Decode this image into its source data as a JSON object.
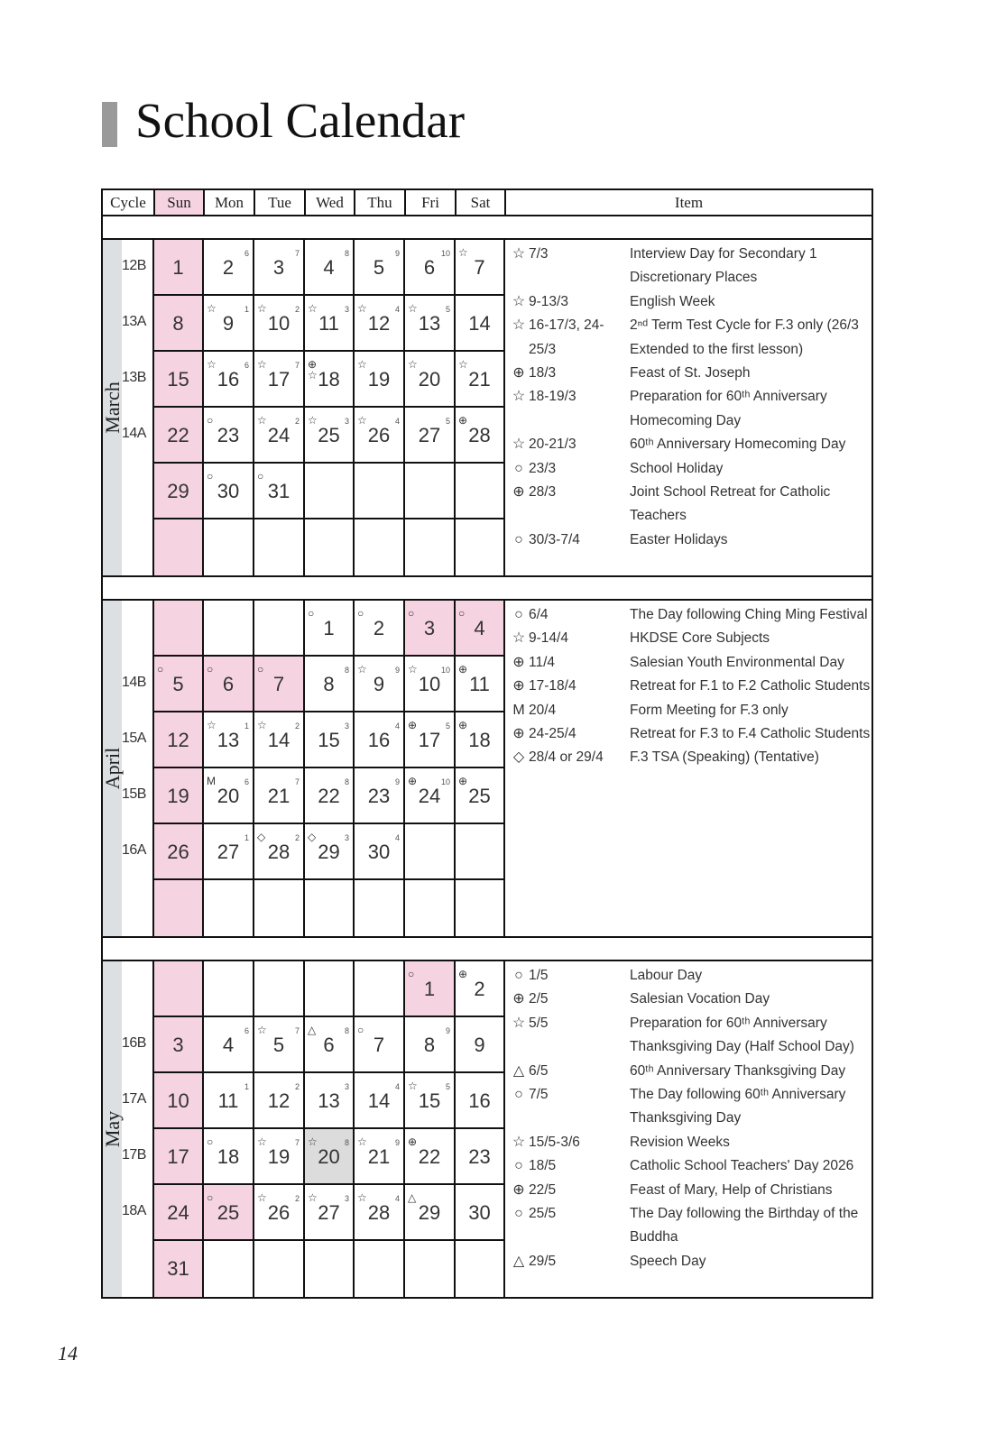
{
  "title": "School Calendar",
  "page_number": "14",
  "colors": {
    "holiday_pink": "#f6d3e1",
    "month_strip": "#dde0e3",
    "highlight_gray": "#dcdcdc"
  },
  "icons": {
    "star": "☆",
    "circle": "○",
    "cross": "⊕",
    "triangle": "△",
    "diamond": "◇",
    "M": "M"
  },
  "header": [
    "Cycle",
    "Sun",
    "Mon",
    "Tue",
    "Wed",
    "Thu",
    "Fri",
    "Sat",
    "Item"
  ],
  "months": [
    {
      "name": "March",
      "weeks": [
        {
          "cycle": "12B",
          "days": [
            {
              "d": "1",
              "shade": "pink"
            },
            {
              "d": "2",
              "sup": "6"
            },
            {
              "d": "3",
              "sup": "7"
            },
            {
              "d": "4",
              "sup": "8"
            },
            {
              "d": "5",
              "sup": "9"
            },
            {
              "d": "6",
              "sup": "10"
            },
            {
              "d": "7",
              "mark": "star"
            }
          ]
        },
        {
          "cycle": "13A",
          "days": [
            {
              "d": "8",
              "shade": "pink"
            },
            {
              "d": "9",
              "mark": "star",
              "sup": "1"
            },
            {
              "d": "10",
              "mark": "star",
              "sup": "2"
            },
            {
              "d": "11",
              "mark": "star",
              "sup": "3"
            },
            {
              "d": "12",
              "mark": "star",
              "sup": "4"
            },
            {
              "d": "13",
              "mark": "star",
              "sup": "5"
            },
            {
              "d": "14"
            }
          ]
        },
        {
          "cycle": "13B",
          "days": [
            {
              "d": "15",
              "shade": "pink"
            },
            {
              "d": "16",
              "mark": "star",
              "sup": "6"
            },
            {
              "d": "17",
              "mark": "star",
              "sup": "7"
            },
            {
              "d": "18",
              "mark": "cross+star"
            },
            {
              "d": "19",
              "mark": "star"
            },
            {
              "d": "20",
              "mark": "star"
            },
            {
              "d": "21",
              "mark": "star"
            }
          ]
        },
        {
          "cycle": "14A",
          "days": [
            {
              "d": "22",
              "shade": "pink"
            },
            {
              "d": "23",
              "mark": "circle"
            },
            {
              "d": "24",
              "mark": "star",
              "sup": "2"
            },
            {
              "d": "25",
              "mark": "star",
              "sup": "3"
            },
            {
              "d": "26",
              "mark": "star",
              "sup": "4"
            },
            {
              "d": "27",
              "sup": "5"
            },
            {
              "d": "28",
              "mark": "cross"
            }
          ]
        },
        {
          "cycle": "",
          "days": [
            {
              "d": "29",
              "shade": "pink"
            },
            {
              "d": "30",
              "mark": "circle"
            },
            {
              "d": "31",
              "mark": "circle"
            },
            {},
            {},
            {},
            {}
          ]
        },
        {
          "cycle": "",
          "days": [
            {
              "shade": "pink"
            },
            {},
            {},
            {},
            {},
            {},
            {}
          ]
        }
      ],
      "items": [
        {
          "icon": "star",
          "date": "7/3",
          "text": "Interview Day for Secondary 1 Discretionary Places"
        },
        {
          "icon": "star",
          "date": "9-13/3",
          "text": "English Week"
        },
        {
          "icon": "star",
          "date": "16-17/3, 24-25/3",
          "text": "2ⁿᵈ Term Test Cycle for F.3 only (26/3 Extended to the first lesson)"
        },
        {
          "icon": "cross",
          "date": "18/3",
          "text": "Feast of St. Joseph"
        },
        {
          "icon": "star",
          "date": "18-19/3",
          "text": "Preparation for 60ᵗʰ Anniversary Homecoming Day"
        },
        {
          "icon": "star",
          "date": "20-21/3",
          "text": "60ᵗʰ Anniversary Homecoming Day"
        },
        {
          "icon": "circle",
          "date": "23/3",
          "text": "School Holiday"
        },
        {
          "icon": "cross",
          "date": "28/3",
          "text": "Joint School Retreat for Catholic Teachers"
        },
        {
          "icon": "circle",
          "date": "30/3-7/4",
          "text": "Easter Holidays"
        }
      ]
    },
    {
      "name": "April",
      "weeks": [
        {
          "cycle": "",
          "days": [
            {
              "shade": "pink"
            },
            {},
            {},
            {
              "d": "1",
              "mark": "circle"
            },
            {
              "d": "2",
              "mark": "circle"
            },
            {
              "d": "3",
              "mark": "circle",
              "shade": "pink"
            },
            {
              "d": "4",
              "mark": "circle",
              "shade": "pink"
            }
          ]
        },
        {
          "cycle": "14B",
          "days": [
            {
              "d": "5",
              "mark": "circle",
              "shade": "pink"
            },
            {
              "d": "6",
              "mark": "circle",
              "shade": "pink"
            },
            {
              "d": "7",
              "mark": "circle",
              "shade": "pink"
            },
            {
              "d": "8",
              "sup": "8"
            },
            {
              "d": "9",
              "mark": "star",
              "sup": "9"
            },
            {
              "d": "10",
              "mark": "star",
              "sup": "10"
            },
            {
              "d": "11",
              "mark": "cross"
            }
          ]
        },
        {
          "cycle": "15A",
          "days": [
            {
              "d": "12",
              "shade": "pink"
            },
            {
              "d": "13",
              "mark": "star",
              "sup": "1"
            },
            {
              "d": "14",
              "mark": "star",
              "sup": "2"
            },
            {
              "d": "15",
              "sup": "3"
            },
            {
              "d": "16",
              "sup": "4"
            },
            {
              "d": "17",
              "mark": "cross",
              "sup": "5"
            },
            {
              "d": "18",
              "mark": "cross"
            }
          ]
        },
        {
          "cycle": "15B",
          "days": [
            {
              "d": "19",
              "shade": "pink"
            },
            {
              "d": "20",
              "mark": "M",
              "sup": "6"
            },
            {
              "d": "21",
              "sup": "7"
            },
            {
              "d": "22",
              "sup": "8"
            },
            {
              "d": "23",
              "sup": "9"
            },
            {
              "d": "24",
              "mark": "cross",
              "sup": "10"
            },
            {
              "d": "25",
              "mark": "cross"
            }
          ]
        },
        {
          "cycle": "16A",
          "days": [
            {
              "d": "26",
              "shade": "pink"
            },
            {
              "d": "27",
              "sup": "1"
            },
            {
              "d": "28",
              "mark": "diamond",
              "sup": "2"
            },
            {
              "d": "29",
              "mark": "diamond",
              "sup": "3"
            },
            {
              "d": "30",
              "sup": "4"
            },
            {},
            {}
          ]
        },
        {
          "cycle": "",
          "days": [
            {
              "shade": "pink"
            },
            {},
            {},
            {},
            {},
            {},
            {}
          ]
        }
      ],
      "items": [
        {
          "icon": "circle",
          "date": "6/4",
          "text": "The Day following Ching Ming Festival"
        },
        {
          "icon": "star",
          "date": "9-14/4",
          "text": "HKDSE Core Subjects"
        },
        {
          "icon": "cross",
          "date": "11/4",
          "text": "Salesian Youth Environmental Day"
        },
        {
          "icon": "cross",
          "date": "17-18/4",
          "text": "Retreat for F.1 to F.2 Catholic Students"
        },
        {
          "icon": "M",
          "date": "20/4",
          "text": "Form Meeting for F.3 only"
        },
        {
          "icon": "cross",
          "date": "24-25/4",
          "text": "Retreat for F.3 to F.4 Catholic Students"
        },
        {
          "icon": "diamond",
          "date": "28/4 or 29/4",
          "text": "F.3 TSA (Speaking) (Tentative)"
        }
      ]
    },
    {
      "name": "May",
      "weeks": [
        {
          "cycle": "",
          "days": [
            {
              "shade": "pink"
            },
            {},
            {},
            {},
            {},
            {
              "d": "1",
              "mark": "circle",
              "shade": "pink"
            },
            {
              "d": "2",
              "mark": "cross"
            }
          ]
        },
        {
          "cycle": "16B",
          "days": [
            {
              "d": "3",
              "shade": "pink"
            },
            {
              "d": "4",
              "sup": "6"
            },
            {
              "d": "5",
              "mark": "star",
              "sup": "7"
            },
            {
              "d": "6",
              "mark": "triangle",
              "sup": "8"
            },
            {
              "d": "7",
              "mark": "circle"
            },
            {
              "d": "8",
              "sup": "9"
            },
            {
              "d": "9"
            }
          ]
        },
        {
          "cycle": "17A",
          "days": [
            {
              "d": "10",
              "shade": "pink"
            },
            {
              "d": "11",
              "sup": "1"
            },
            {
              "d": "12",
              "sup": "2"
            },
            {
              "d": "13",
              "sup": "3"
            },
            {
              "d": "14",
              "sup": "4"
            },
            {
              "d": "15",
              "mark": "star",
              "sup": "5"
            },
            {
              "d": "16"
            }
          ]
        },
        {
          "cycle": "17B",
          "days": [
            {
              "d": "17",
              "shade": "pink"
            },
            {
              "d": "18",
              "mark": "circle"
            },
            {
              "d": "19",
              "mark": "star",
              "sup": "7"
            },
            {
              "d": "20",
              "mark": "star",
              "sup": "8",
              "shade": "gray"
            },
            {
              "d": "21",
              "mark": "star",
              "sup": "9"
            },
            {
              "d": "22",
              "mark": "cross"
            },
            {
              "d": "23"
            }
          ]
        },
        {
          "cycle": "18A",
          "days": [
            {
              "d": "24",
              "shade": "pink"
            },
            {
              "d": "25",
              "mark": "circle",
              "shade": "pink"
            },
            {
              "d": "26",
              "mark": "star",
              "sup": "2"
            },
            {
              "d": "27",
              "mark": "star",
              "sup": "3"
            },
            {
              "d": "28",
              "mark": "star",
              "sup": "4"
            },
            {
              "d": "29",
              "mark": "triangle"
            },
            {
              "d": "30"
            }
          ]
        },
        {
          "cycle": "",
          "days": [
            {
              "d": "31",
              "shade": "pink"
            },
            {},
            {},
            {},
            {},
            {},
            {}
          ]
        }
      ],
      "items": [
        {
          "icon": "circle",
          "date": "1/5",
          "text": "Labour Day"
        },
        {
          "icon": "cross",
          "date": "2/5",
          "text": "Salesian Vocation Day"
        },
        {
          "icon": "star",
          "date": "5/5",
          "text": "Preparation for 60ᵗʰ Anniversary Thanksgiving Day (Half School Day)"
        },
        {
          "icon": "triangle",
          "date": "6/5",
          "text": "60ᵗʰ Anniversary Thanksgiving Day"
        },
        {
          "icon": "circle",
          "date": "7/5",
          "text": "The Day following 60ᵗʰ Anniversary Thanksgiving Day"
        },
        {
          "icon": "star",
          "date": "15/5-3/6",
          "text": "Revision Weeks"
        },
        {
          "icon": "circle",
          "date": "18/5",
          "text": "Catholic School Teachers' Day 2026"
        },
        {
          "icon": "cross",
          "date": "22/5",
          "text": "Feast of Mary, Help of Christians"
        },
        {
          "icon": "circle",
          "date": "25/5",
          "text": "The Day following the Birthday of the Buddha"
        },
        {
          "icon": "triangle",
          "date": "29/5",
          "text": "Speech Day"
        }
      ]
    }
  ]
}
